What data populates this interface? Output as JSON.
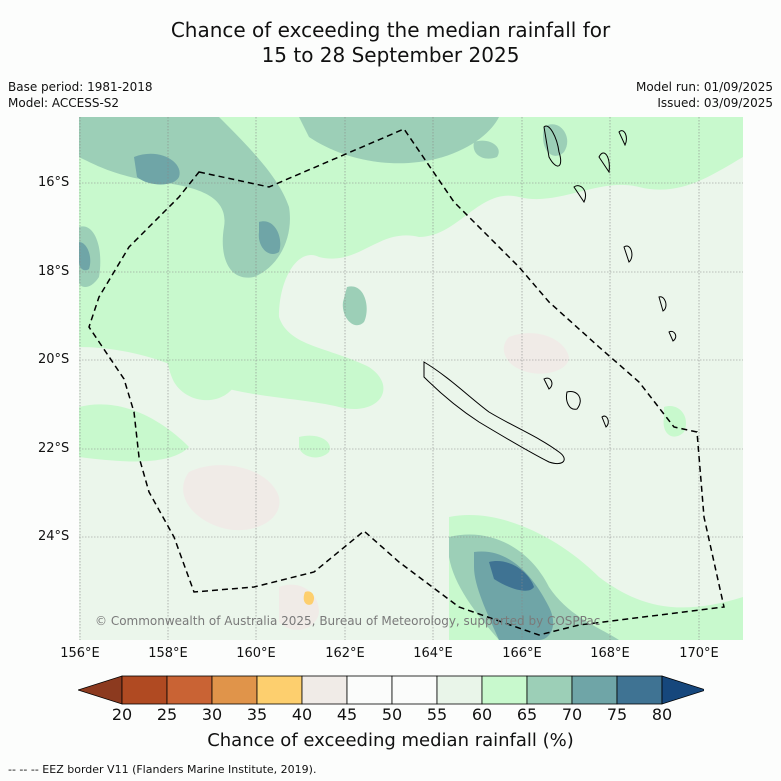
{
  "title_line1": "Chance of exceeding the median rainfall for",
  "title_line2": "15 to 28 September 2025",
  "meta_left": [
    "Base period: 1981-2018",
    "Model: ACCESS-S2"
  ],
  "meta_right": [
    "Model run: 01/09/2025",
    "Issued: 03/09/2025"
  ],
  "copyright": "© Commonwealth of Australia 2025, Bureau of Meteorology, supported by COSPPac",
  "lat_labels": [
    "16°S",
    "18°S",
    "20°S",
    "22°S",
    "24°S"
  ],
  "lon_labels": [
    "156°E",
    "158°E",
    "160°E",
    "162°E",
    "164°E",
    "166°E",
    "168°E",
    "170°E"
  ],
  "colorbar": {
    "title": "Chance of exceeding median rainfall (%)",
    "ticks": [
      "20",
      "25",
      "30",
      "35",
      "40",
      "45",
      "50",
      "55",
      "60",
      "65",
      "70",
      "75",
      "80"
    ],
    "colors": [
      "#8c3a1f",
      "#b04a22",
      "#c96334",
      "#e0944a",
      "#fdcf6e",
      "#f0ebe7",
      "#fbfcfb",
      "#fbfcfb",
      "#e9f5e9",
      "#c8f9cd",
      "#9ccfb7",
      "#6fa5a7",
      "#3f7393",
      "#16477c"
    ]
  },
  "footnote": "--  --  -- EEZ border V11 (Flanders Marine Institute, 2019)."
}
